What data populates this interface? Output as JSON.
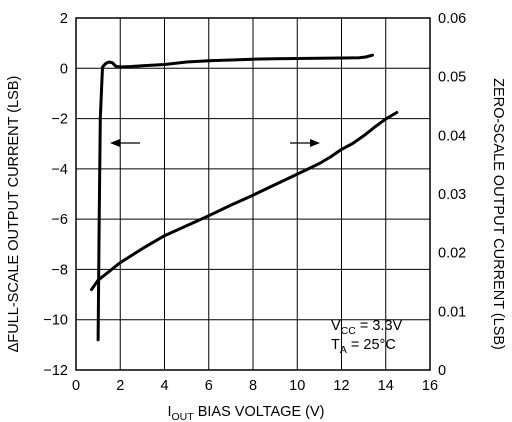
{
  "chart_data": {
    "type": "line",
    "xlabel": "I_OUT BIAS VOLTAGE (V)",
    "xlabel_parts": {
      "main": "I",
      "sub": "OUT",
      "rest": " BIAS VOLTAGE (V)"
    },
    "ylabel_left": "ΔFULL-SCALE OUTPUT CURRENT (LSB)",
    "ylabel_right": "ZERO-SCALE OUTPUT CURRENT (LSB)",
    "xlim": [
      0,
      16
    ],
    "ylim_left": [
      -12,
      2
    ],
    "ylim_right": [
      0,
      0.06
    ],
    "x_ticks": [
      "0",
      "2",
      "4",
      "6",
      "8",
      "10",
      "12",
      "14",
      "16"
    ],
    "y_ticks_left": [
      "2",
      "0",
      "−2",
      "−4",
      "−6",
      "−8",
      "−10",
      "−12"
    ],
    "y_ticks_right": [
      "0.06",
      "0.05",
      "0.04",
      "0.03",
      "0.02",
      "0.01",
      "0"
    ],
    "grid": true,
    "series": [
      {
        "axis": "left",
        "x": [
          1.0,
          1.05,
          1.1,
          1.2,
          1.35,
          1.5,
          1.65,
          1.8,
          2.0,
          2.5,
          3.0,
          4.0,
          5.0,
          6.0,
          7.0,
          8.0,
          9.0,
          10.0,
          11.0,
          12.0,
          12.8,
          13.1,
          13.4
        ],
        "y": [
          -10.8,
          -6.0,
          -2.0,
          0.05,
          0.2,
          0.25,
          0.22,
          0.08,
          0.05,
          0.07,
          0.1,
          0.15,
          0.25,
          0.3,
          0.33,
          0.36,
          0.38,
          0.39,
          0.4,
          0.41,
          0.42,
          0.45,
          0.52
        ]
      },
      {
        "axis": "right",
        "x": [
          0.7,
          1.0,
          1.5,
          2.0,
          3.0,
          4.0,
          5.0,
          6.0,
          7.0,
          8.0,
          9.0,
          10.0,
          11.0,
          11.5,
          12.0,
          12.5,
          13.0,
          13.5,
          14.0,
          14.5
        ],
        "y": [
          0.0137,
          0.0153,
          0.0168,
          0.0183,
          0.0207,
          0.0229,
          0.0246,
          0.0263,
          0.0281,
          0.0298,
          0.0316,
          0.0334,
          0.0352,
          0.0363,
          0.0376,
          0.0386,
          0.0399,
          0.0414,
          0.0428,
          0.0439
        ]
      }
    ],
    "annotations": {
      "vcc": {
        "main": "V",
        "sub": "CC",
        "rest": " = 3.3V"
      },
      "ta": {
        "main": "T",
        "sub": "A",
        "rest": " = 25°C"
      }
    }
  }
}
